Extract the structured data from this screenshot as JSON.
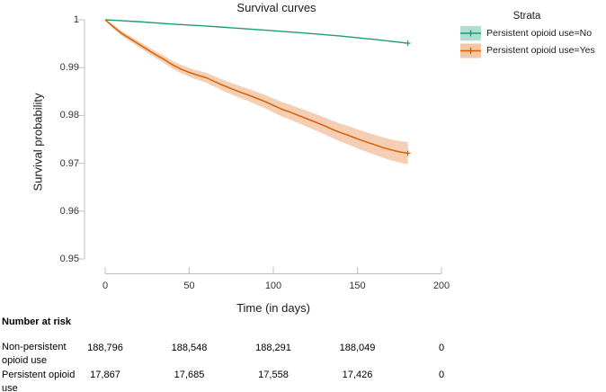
{
  "chart_data": {
    "type": "line",
    "title": "Survival curves",
    "xlabel": "Time (in days)",
    "ylabel": "Survival probability",
    "xlim": [
      0,
      200
    ],
    "ylim": [
      0.95,
      1.0
    ],
    "grid": false,
    "x_ticks": [
      0,
      50,
      100,
      150,
      200
    ],
    "x_tick_labels": [
      "0",
      "50",
      "100",
      "150",
      "200"
    ],
    "y_ticks": [
      1,
      0.99,
      0.98,
      0.97,
      0.96,
      0.95
    ],
    "y_tick_labels": [
      "1",
      "0.99",
      "0.98",
      "0.97",
      "0.96",
      "0.95"
    ],
    "legend": {
      "title": "Strata",
      "position": "right",
      "entries": [
        {
          "label": "Persistent opioid use=No",
          "color": "#1b9e77"
        },
        {
          "label": "Persistent opioid use=Yes",
          "color": "#d95f02"
        }
      ]
    },
    "series": [
      {
        "name": "Persistent opioid use=No",
        "color": "#1b9e77",
        "x": [
          0,
          20,
          40,
          60,
          80,
          100,
          120,
          140,
          160,
          180
        ],
        "y": [
          1.0,
          0.9996,
          0.9991,
          0.9987,
          0.9982,
          0.9977,
          0.9972,
          0.9966,
          0.9959,
          0.9951
        ]
      },
      {
        "name": "Persistent opioid use=Yes",
        "color": "#d95f02",
        "band_opacity": 0.3,
        "x": [
          0,
          5,
          10,
          15,
          20,
          25,
          30,
          35,
          40,
          45,
          50,
          55,
          60,
          65,
          70,
          75,
          80,
          85,
          90,
          95,
          100,
          105,
          110,
          115,
          120,
          125,
          130,
          135,
          140,
          145,
          150,
          155,
          160,
          165,
          170,
          175,
          180
        ],
        "y": [
          1.0,
          0.9985,
          0.9971,
          0.996,
          0.9949,
          0.9938,
          0.9927,
          0.9917,
          0.9906,
          0.9897,
          0.989,
          0.9884,
          0.9879,
          0.9871,
          0.9863,
          0.9856,
          0.9849,
          0.9843,
          0.9836,
          0.9829,
          0.9821,
          0.9813,
          0.9807,
          0.98,
          0.9793,
          0.9786,
          0.9779,
          0.9771,
          0.9764,
          0.9758,
          0.9751,
          0.9745,
          0.9739,
          0.9733,
          0.9728,
          0.9724,
          0.9721
        ],
        "lower": [
          0.9999,
          0.99805,
          0.9966,
          0.99544,
          0.99429,
          0.99314,
          0.99198,
          0.99093,
          0.98978,
          0.98883,
          0.98807,
          0.98742,
          0.98687,
          0.98602,
          0.98516,
          0.98441,
          0.98366,
          0.98301,
          0.98225,
          0.9815,
          0.98065,
          0.9798,
          0.97914,
          0.97839,
          0.97764,
          0.97689,
          0.97613,
          0.97528,
          0.97453,
          0.97388,
          0.97312,
          0.97247,
          0.97182,
          0.97117,
          0.97061,
          0.97016,
          0.96981
        ],
        "upper": [
          1.0,
          0.99895,
          0.9976,
          0.99656,
          0.99551,
          0.99446,
          0.99342,
          0.99247,
          0.99142,
          0.99057,
          0.98993,
          0.98938,
          0.98893,
          0.98818,
          0.98744,
          0.98679,
          0.98614,
          0.98559,
          0.98495,
          0.9843,
          0.98355,
          0.9828,
          0.98226,
          0.98161,
          0.98096,
          0.98031,
          0.97967,
          0.97892,
          0.97827,
          0.97772,
          0.97708,
          0.97653,
          0.97598,
          0.97543,
          0.97499,
          0.97464,
          0.97439
        ]
      }
    ],
    "risk_table": {
      "heading": "Number at risk",
      "columns": [
        0,
        50,
        100,
        150,
        200
      ],
      "rows": [
        {
          "label": "Non-persistent opioid use",
          "values": [
            "188,796",
            "188,548",
            "188,291",
            "188,049",
            "0"
          ]
        },
        {
          "label": "Persistent opioid use",
          "values": [
            "17,867",
            "17,685",
            "17,558",
            "17,426",
            "0"
          ]
        }
      ]
    },
    "colors": {
      "axis": "#bfbfbf",
      "tick_text": "#333333",
      "title_text": "#1a1a1a"
    }
  }
}
